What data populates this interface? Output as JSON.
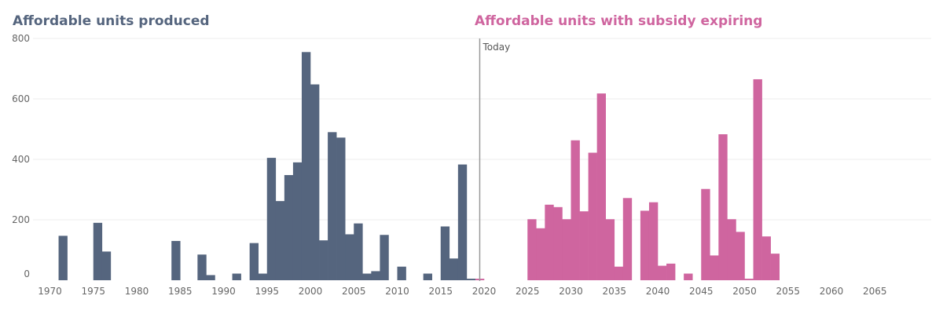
{
  "titles": {
    "produced": "Affordable units produced",
    "expiring": "Affordable units with subsidy expiring"
  },
  "colors": {
    "produced": "#55657e",
    "expiring": "#cf659f",
    "today_line": "#999999",
    "grid": "#eeeeee"
  },
  "chart_data": {
    "type": "bar",
    "xlim": [
      1968,
      2068
    ],
    "ylim": [
      0,
      800
    ],
    "y_ticks": [
      0,
      200,
      400,
      600,
      800
    ],
    "x_ticks": [
      1970,
      1975,
      1980,
      1985,
      1990,
      1995,
      2000,
      2005,
      2010,
      2015,
      2020,
      2025,
      2030,
      2035,
      2040,
      2045,
      2050,
      2055,
      2060,
      2065
    ],
    "grid": true,
    "annotation": {
      "label": "Today",
      "x": 2019.5
    },
    "series": [
      {
        "name": "Affordable units produced",
        "points": [
          {
            "x": 1971,
            "y": 147
          },
          {
            "x": 1975,
            "y": 190
          },
          {
            "x": 1976,
            "y": 95
          },
          {
            "x": 1984,
            "y": 130
          },
          {
            "x": 1987,
            "y": 85
          },
          {
            "x": 1988,
            "y": 17
          },
          {
            "x": 1991,
            "y": 22
          },
          {
            "x": 1993,
            "y": 123
          },
          {
            "x": 1994,
            "y": 22
          },
          {
            "x": 1995,
            "y": 405
          },
          {
            "x": 1996,
            "y": 262
          },
          {
            "x": 1997,
            "y": 348
          },
          {
            "x": 1998,
            "y": 390
          },
          {
            "x": 1999,
            "y": 755
          },
          {
            "x": 2000,
            "y": 648
          },
          {
            "x": 2001,
            "y": 132
          },
          {
            "x": 2002,
            "y": 490
          },
          {
            "x": 2003,
            "y": 472
          },
          {
            "x": 2004,
            "y": 152
          },
          {
            "x": 2005,
            "y": 188
          },
          {
            "x": 2006,
            "y": 22
          },
          {
            "x": 2007,
            "y": 30
          },
          {
            "x": 2008,
            "y": 150
          },
          {
            "x": 2010,
            "y": 45
          },
          {
            "x": 2013,
            "y": 22
          },
          {
            "x": 2015,
            "y": 178
          },
          {
            "x": 2016,
            "y": 72
          },
          {
            "x": 2017,
            "y": 383
          },
          {
            "x": 2018,
            "y": 5
          }
        ]
      },
      {
        "name": "Affordable units with subsidy expiring",
        "points": [
          {
            "x": 2019,
            "y": 5
          },
          {
            "x": 2025,
            "y": 202
          },
          {
            "x": 2026,
            "y": 172
          },
          {
            "x": 2027,
            "y": 250
          },
          {
            "x": 2028,
            "y": 242
          },
          {
            "x": 2029,
            "y": 202
          },
          {
            "x": 2030,
            "y": 463
          },
          {
            "x": 2031,
            "y": 228
          },
          {
            "x": 2032,
            "y": 422
          },
          {
            "x": 2033,
            "y": 618
          },
          {
            "x": 2034,
            "y": 202
          },
          {
            "x": 2035,
            "y": 45
          },
          {
            "x": 2036,
            "y": 272
          },
          {
            "x": 2038,
            "y": 230
          },
          {
            "x": 2039,
            "y": 258
          },
          {
            "x": 2040,
            "y": 48
          },
          {
            "x": 2041,
            "y": 55
          },
          {
            "x": 2043,
            "y": 22
          },
          {
            "x": 2045,
            "y": 302
          },
          {
            "x": 2046,
            "y": 82
          },
          {
            "x": 2047,
            "y": 483
          },
          {
            "x": 2048,
            "y": 202
          },
          {
            "x": 2049,
            "y": 160
          },
          {
            "x": 2050,
            "y": 5
          },
          {
            "x": 2051,
            "y": 665
          },
          {
            "x": 2052,
            "y": 145
          },
          {
            "x": 2053,
            "y": 88
          }
        ]
      }
    ]
  }
}
